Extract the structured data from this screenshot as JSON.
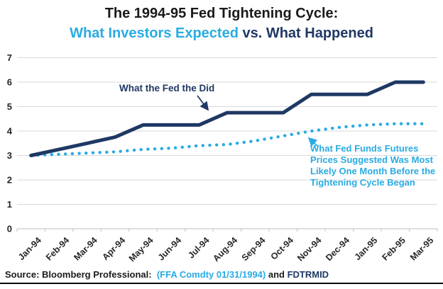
{
  "title": {
    "line1": "The 1994-95 Fed Tightening Cycle:",
    "line2_expected": "What Investors Expected",
    "line2_happened": " vs. What Happened"
  },
  "colors": {
    "navy": "#1f3864",
    "light_blue": "#29abe2",
    "gridline": "#d9d9d9",
    "axis": "#bfbfbf",
    "axis_text": "#262626",
    "title_black": "#1a1a1a"
  },
  "chart_data": {
    "type": "line",
    "categories": [
      "Jan-94",
      "Feb-94",
      "Mar-94",
      "Apr-94",
      "May-94",
      "Jun-94",
      "Jul-94",
      "Aug-94",
      "Sep-94",
      "Oct-94",
      "Nov-94",
      "Dec-94",
      "Jan-95",
      "Feb-95",
      "Mar-95"
    ],
    "series": [
      {
        "name": "What the Fed the Did",
        "style": "solid",
        "color": "#1f3864",
        "values": [
          3.0,
          3.25,
          3.5,
          3.75,
          4.25,
          4.25,
          4.25,
          4.75,
          4.75,
          4.75,
          5.5,
          5.5,
          5.5,
          6.0,
          6.0
        ]
      },
      {
        "name": "What Fed Funds Futures Prices Suggested Was Most Likely One Month Before the Tightening Cycle Began",
        "style": "dotted",
        "color": "#29abe2",
        "values": [
          3.0,
          3.05,
          3.1,
          3.15,
          3.25,
          3.3,
          3.4,
          3.45,
          3.6,
          3.8,
          4.0,
          4.15,
          4.25,
          4.3,
          4.3
        ]
      }
    ],
    "ylim": [
      0,
      7
    ],
    "yticks": [
      0,
      1,
      2,
      3,
      4,
      5,
      6,
      7
    ],
    "grid": "horizontal",
    "x_label_rotation_deg": -45,
    "legend": "in-chart annotations with arrows"
  },
  "annotations": {
    "fed_label": "What the Fed the Did",
    "futures_label_lines": [
      "What Fed Funds Futures",
      "Prices Suggested Was Most",
      "Likely One Month Before the",
      "Tightening Cycle Began"
    ]
  },
  "source": {
    "prefix": "Source: Bloomberg Professional:  ",
    "ticker1": "(FFA Comdty 01/31/1994)",
    "connector": " and ",
    "ticker2": "FDTRMID"
  }
}
